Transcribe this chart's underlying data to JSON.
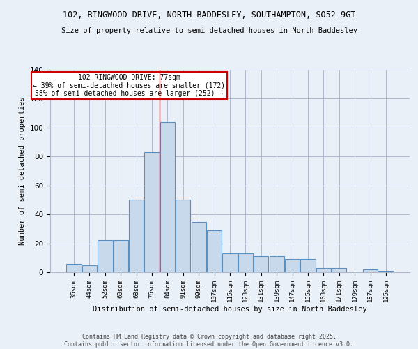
{
  "title1": "102, RINGWOOD DRIVE, NORTH BADDESLEY, SOUTHAMPTON, SO52 9GT",
  "title2": "Size of property relative to semi-detached houses in North Baddesley",
  "xlabel": "Distribution of semi-detached houses by size in North Baddesley",
  "ylabel": "Number of semi-detached properties",
  "footer1": "Contains HM Land Registry data © Crown copyright and database right 2025.",
  "footer2": "Contains public sector information licensed under the Open Government Licence v3.0.",
  "annotation_title": "102 RINGWOOD DRIVE: 77sqm",
  "annotation_line1": "← 39% of semi-detached houses are smaller (172)",
  "annotation_line2": "58% of semi-detached houses are larger (252) →",
  "bar_labels": [
    "36sqm",
    "44sqm",
    "52sqm",
    "60sqm",
    "68sqm",
    "76sqm",
    "84sqm",
    "91sqm",
    "99sqm",
    "107sqm",
    "115sqm",
    "123sqm",
    "131sqm",
    "139sqm",
    "147sqm",
    "155sqm",
    "163sqm",
    "171sqm",
    "179sqm",
    "187sqm",
    "195sqm"
  ],
  "bar_values": [
    6,
    5,
    22,
    22,
    50,
    83,
    104,
    50,
    35,
    29,
    13,
    13,
    11,
    11,
    9,
    9,
    3,
    3,
    0,
    2,
    1
  ],
  "bar_color": "#c9d9ec",
  "bar_edge_color": "#5a8fc2",
  "grid_color": "#b0b8cc",
  "bg_color": "#eaf0f8",
  "ylim": [
    0,
    140
  ],
  "annotation_box_color": "#ffffff",
  "annotation_box_edge": "#cc0000",
  "red_line_index": 5.5
}
